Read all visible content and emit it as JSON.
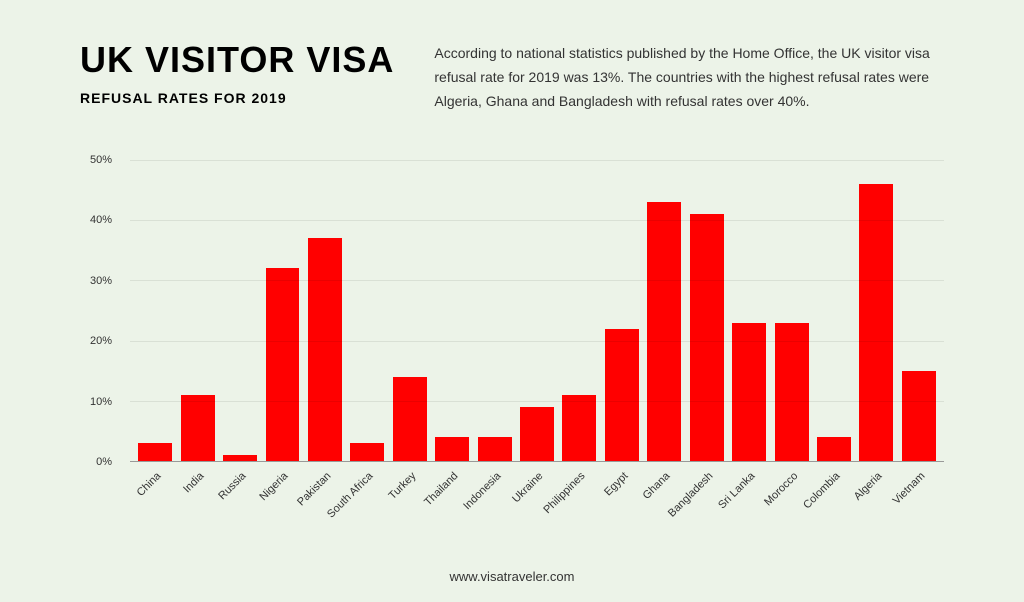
{
  "header": {
    "title": "UK VISITOR VISA",
    "subtitle": "REFUSAL RATES FOR 2019",
    "description": "According to national statistics published by the Home Office, the UK visitor visa refusal rate for 2019 was 13%. The countries with the highest refusal rates were Algeria, Ghana and Bangladesh with refusal rates over 40%."
  },
  "chart": {
    "type": "bar",
    "bar_color": "#ff0000",
    "background_color": "#ecf3e8",
    "grid_color": "rgba(0,0,0,0.08)",
    "axis_color": "#999999",
    "label_color": "#333333",
    "label_fontsize": 11,
    "bar_width": 0.8,
    "ylim": [
      0,
      50
    ],
    "ytick_step": 10,
    "ytick_suffix": "%",
    "x_label_rotation": -45,
    "yticks": [
      {
        "value": 0,
        "label": "0%"
      },
      {
        "value": 10,
        "label": "10%"
      },
      {
        "value": 20,
        "label": "20%"
      },
      {
        "value": 30,
        "label": "30%"
      },
      {
        "value": 40,
        "label": "40%"
      },
      {
        "value": 50,
        "label": "50%"
      }
    ],
    "data": [
      {
        "country": "China",
        "value": 3
      },
      {
        "country": "India",
        "value": 11
      },
      {
        "country": "Russia",
        "value": 1
      },
      {
        "country": "Nigeria",
        "value": 32
      },
      {
        "country": "Pakistan",
        "value": 37
      },
      {
        "country": "South Africa",
        "value": 3
      },
      {
        "country": "Turkey",
        "value": 14
      },
      {
        "country": "Thailand",
        "value": 4
      },
      {
        "country": "Indonesia",
        "value": 4
      },
      {
        "country": "Ukraine",
        "value": 9
      },
      {
        "country": "Philippines",
        "value": 11
      },
      {
        "country": "Egypt",
        "value": 22
      },
      {
        "country": "Ghana",
        "value": 43
      },
      {
        "country": "Bangladesh",
        "value": 41
      },
      {
        "country": "Sri Lanka",
        "value": 23
      },
      {
        "country": "Morocco",
        "value": 23
      },
      {
        "country": "Colombia",
        "value": 4
      },
      {
        "country": "Algeria",
        "value": 46
      },
      {
        "country": "Vietnam",
        "value": 15
      }
    ]
  },
  "footer": {
    "source": "www.visatraveler.com"
  }
}
